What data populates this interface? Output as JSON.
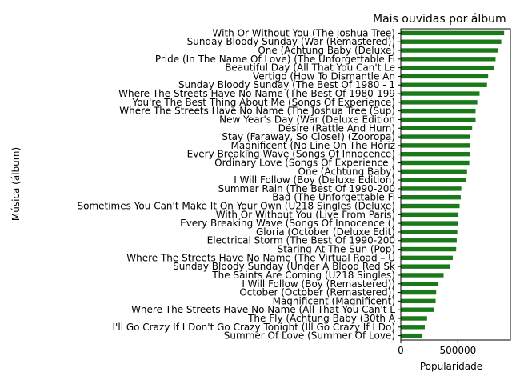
{
  "chart_data": {
    "type": "bar",
    "orientation": "horizontal",
    "title": "Mais ouvidas por álbum",
    "xlabel": "Popularidade",
    "ylabel": "Música (álbum)",
    "xlim": [
      0,
      960000
    ],
    "xticks": [
      0,
      500000
    ],
    "xtick_labels": [
      "0",
      "500000"
    ],
    "grid": false,
    "legend": "none",
    "bar_color": "#1a7a1a",
    "categories": [
      "With Or Without You (The Joshua Tree)",
      "Sunday Bloody Sunday (War (Remastered))",
      "One (Achtung Baby (Deluxe)",
      "Pride (In The Name Of Love) (The Unforgettable Fi",
      "Beautiful Day (All That You Can't Le",
      "Vertigo (How To Dismantle An",
      "Sunday Bloody Sunday (The Best Of 1980 - 1",
      "Where The Streets Have No Name (The Best Of 1980-199",
      "You're The Best Thing About Me (Songs Of Experience)",
      "Where The Streets Have No Name (The Joshua Tree (Sup)",
      "New Year's Day (War (Deluxe Edition",
      "Desire (Rattle And Hum)",
      "Stay (Faraway, So Close!) (Zooropa)",
      "Magnificent (No Line On The Horiz",
      "Every Breaking Wave (Songs Of Innocence)",
      "Ordinary Love (Songs Of Experience )",
      "One (Achtung Baby)",
      "I Will Follow (Boy (Deluxe Edition)",
      "Summer Rain (The Best Of 1990-200",
      "Bad (The Unforgettable Fi",
      "Sometimes You Can't Make It On Your Own (U218 Singles (Deluxe)",
      "With Or Without You (Live From Paris)",
      "Every Breaking Wave (Songs Of Innocence ()",
      "Gloria (October (Deluxe Edit)",
      "Electrical Storm (The Best Of 1990-200",
      "Staring At The Sun (Pop)",
      "Where The Streets Have No Name (The Virtual Road – U",
      "Sunday Bloody Sunday (Under A Blood Red Sk",
      "The Saints Are Coming (U218 Singles)",
      "I Will Follow (Boy (Remastered))",
      "October (October (Remastered))",
      "Magnificent (Magnificent)",
      "Where The Streets Have No Name (All That You Can't L",
      "The Fly (Achtung Baby (30th A",
      "I'll Go Crazy If I Don't Go Crazy Tonight (Ill Go Crazy If I Do)",
      "Summer Of Love (Summer Of Love)"
    ],
    "values": [
      905000,
      880000,
      850000,
      830000,
      820000,
      765000,
      755000,
      690000,
      670000,
      655000,
      655000,
      625000,
      610000,
      610000,
      605000,
      600000,
      580000,
      575000,
      530000,
      525000,
      515000,
      505000,
      500000,
      495000,
      490000,
      485000,
      455000,
      435000,
      375000,
      330000,
      310000,
      305000,
      290000,
      230000,
      210000,
      190000
    ]
  }
}
